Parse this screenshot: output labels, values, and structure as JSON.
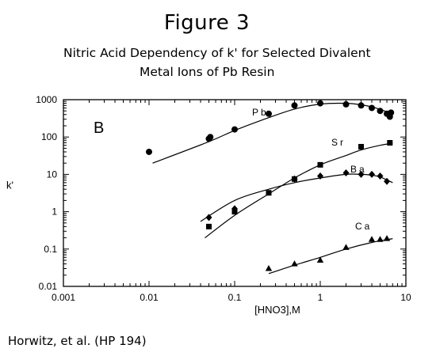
{
  "figure_label": "Figure 3",
  "title_line1": "Nitric Acid Dependency of k' for Selected Divalent",
  "title_line2": "Metal Ions of Pb Resin",
  "credit": "Horwitz, et al. (HP 194)",
  "chart_data": {
    "type": "scatter",
    "title": "Nitric Acid Dependency of k' for Selected Divalent Metal Ions of Pb Resin",
    "panel_label": "B",
    "xlabel": "[HNO3],M",
    "ylabel": "k'",
    "x_scale": "log",
    "y_scale": "log",
    "xlim": [
      0.001,
      10
    ],
    "ylim": [
      0.01,
      1000
    ],
    "x_ticks": [
      0.001,
      0.01,
      0.1,
      1,
      10
    ],
    "x_tick_labels": [
      "0.001",
      "0.01",
      "0.1",
      "1",
      "10"
    ],
    "y_ticks": [
      0.01,
      0.1,
      1,
      10,
      100,
      1000
    ],
    "y_tick_labels": [
      "0.01",
      "0.1",
      "1",
      "10",
      "100",
      "1000"
    ],
    "grid": false,
    "series": [
      {
        "name": "Pb",
        "marker": "circle",
        "x": [
          0.01,
          0.05,
          0.052,
          0.1,
          0.25,
          0.5,
          1.0,
          2.0,
          3.0,
          4.0,
          5.0,
          6.0,
          6.5,
          6.7
        ],
        "y": [
          40,
          90,
          100,
          160,
          420,
          700,
          800,
          750,
          700,
          600,
          500,
          420,
          350,
          450
        ],
        "fit": {
          "x": [
            0.011,
            0.05,
            0.1,
            0.25,
            0.5,
            1.0,
            2.0,
            3.0,
            4.0,
            5.0,
            6.0,
            7.0
          ],
          "y": [
            20,
            75,
            150,
            330,
            560,
            760,
            800,
            730,
            640,
            550,
            470,
            390
          ]
        }
      },
      {
        "name": "Sr",
        "marker": "square",
        "x": [
          0.05,
          0.1,
          0.25,
          0.5,
          1.0,
          3.0,
          6.5
        ],
        "y": [
          0.4,
          1.0,
          3.2,
          7.5,
          18,
          55,
          70
        ],
        "fit": {
          "x": [
            0.045,
            0.1,
            0.25,
            0.5,
            1.0,
            2.0,
            3.0,
            5.0,
            7.0
          ],
          "y": [
            0.2,
            0.8,
            3.0,
            8.0,
            18,
            32,
            45,
            60,
            68
          ]
        }
      },
      {
        "name": "Ba",
        "marker": "diamond",
        "x": [
          0.05,
          0.1,
          0.5,
          1.0,
          2.0,
          3.0,
          4.0,
          5.0,
          6.0
        ],
        "y": [
          0.7,
          1.2,
          7.5,
          9,
          11,
          10,
          10,
          9,
          6.5
        ],
        "fit": {
          "x": [
            0.04,
            0.1,
            0.25,
            0.5,
            1.0,
            2.0,
            3.0,
            4.0,
            5.0,
            7.0
          ],
          "y": [
            0.55,
            2.0,
            4.0,
            6.0,
            8.0,
            10,
            10,
            9.5,
            8.5,
            6.0
          ]
        }
      },
      {
        "name": "Ca",
        "marker": "triangle",
        "x": [
          0.25,
          0.5,
          1.0,
          2.0,
          4.0,
          5.0,
          6.0
        ],
        "y": [
          0.03,
          0.04,
          0.05,
          0.11,
          0.18,
          0.18,
          0.19
        ],
        "fit": {
          "x": [
            0.25,
            0.5,
            1.0,
            2.0,
            4.0,
            7.0
          ],
          "y": [
            0.022,
            0.037,
            0.06,
            0.1,
            0.15,
            0.19
          ]
        }
      }
    ]
  }
}
